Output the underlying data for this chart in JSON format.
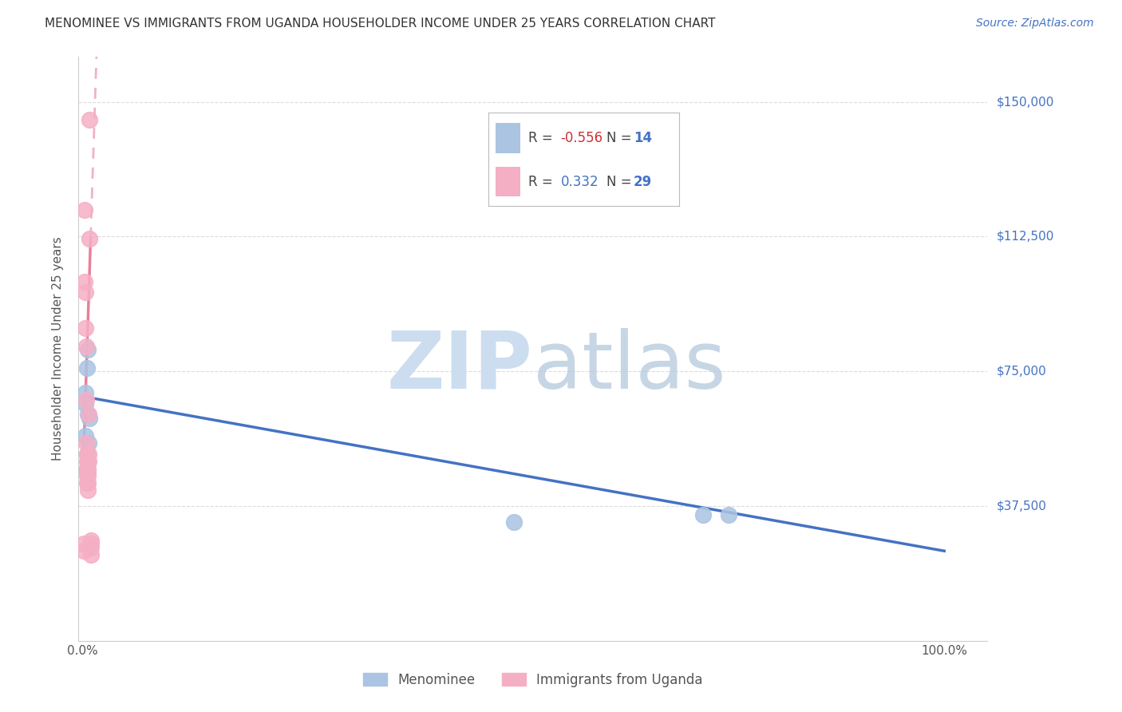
{
  "title": "MENOMINEE VS IMMIGRANTS FROM UGANDA HOUSEHOLDER INCOME UNDER 25 YEARS CORRELATION CHART",
  "source": "Source: ZipAtlas.com",
  "ylabel": "Householder Income Under 25 years",
  "ytick_labels": [
    "$37,500",
    "$75,000",
    "$112,500",
    "$150,000"
  ],
  "ytick_values": [
    37500,
    75000,
    112500,
    150000
  ],
  "ymin": 0,
  "ymax": 162500,
  "xmin": -0.005,
  "xmax": 1.05,
  "blue_R": -0.556,
  "blue_N": 14,
  "pink_R": 0.332,
  "pink_N": 29,
  "blue_label": "Menominee",
  "pink_label": "Immigrants from Uganda",
  "blue_color": "#aac4e2",
  "pink_color": "#f5afc5",
  "blue_line_color": "#4472c4",
  "pink_line_color": "#e8809a",
  "blue_points_x": [
    0.003,
    0.003,
    0.006,
    0.005,
    0.003,
    0.005,
    0.007,
    0.008,
    0.006,
    0.006,
    0.005,
    0.5,
    0.72,
    0.75
  ],
  "blue_points_y": [
    69000,
    66000,
    81000,
    76000,
    57000,
    52000,
    55000,
    62000,
    63000,
    50000,
    48000,
    33000,
    35000,
    35000
  ],
  "pink_points_x": [
    0.001,
    0.001,
    0.002,
    0.002,
    0.003,
    0.003,
    0.004,
    0.004,
    0.004,
    0.005,
    0.005,
    0.005,
    0.005,
    0.005,
    0.005,
    0.006,
    0.006,
    0.006,
    0.006,
    0.006,
    0.007,
    0.007,
    0.007,
    0.008,
    0.008,
    0.009,
    0.009,
    0.009,
    0.009
  ],
  "pink_points_y": [
    27000,
    25000,
    120000,
    100000,
    97000,
    87000,
    82000,
    67000,
    55000,
    52000,
    50000,
    48000,
    47000,
    46000,
    44000,
    48000,
    47000,
    46000,
    44000,
    42000,
    63000,
    52000,
    50000,
    145000,
    112000,
    28000,
    27000,
    26000,
    24000
  ],
  "watermark_zip": "ZIP",
  "watermark_atlas": "atlas",
  "watermark_color": "#ccddf0",
  "background_color": "#ffffff",
  "grid_color": "#d8d8d8",
  "legend_blue_r": "-0.556",
  "legend_blue_n": "14",
  "legend_pink_r": "0.332",
  "legend_pink_n": "29"
}
